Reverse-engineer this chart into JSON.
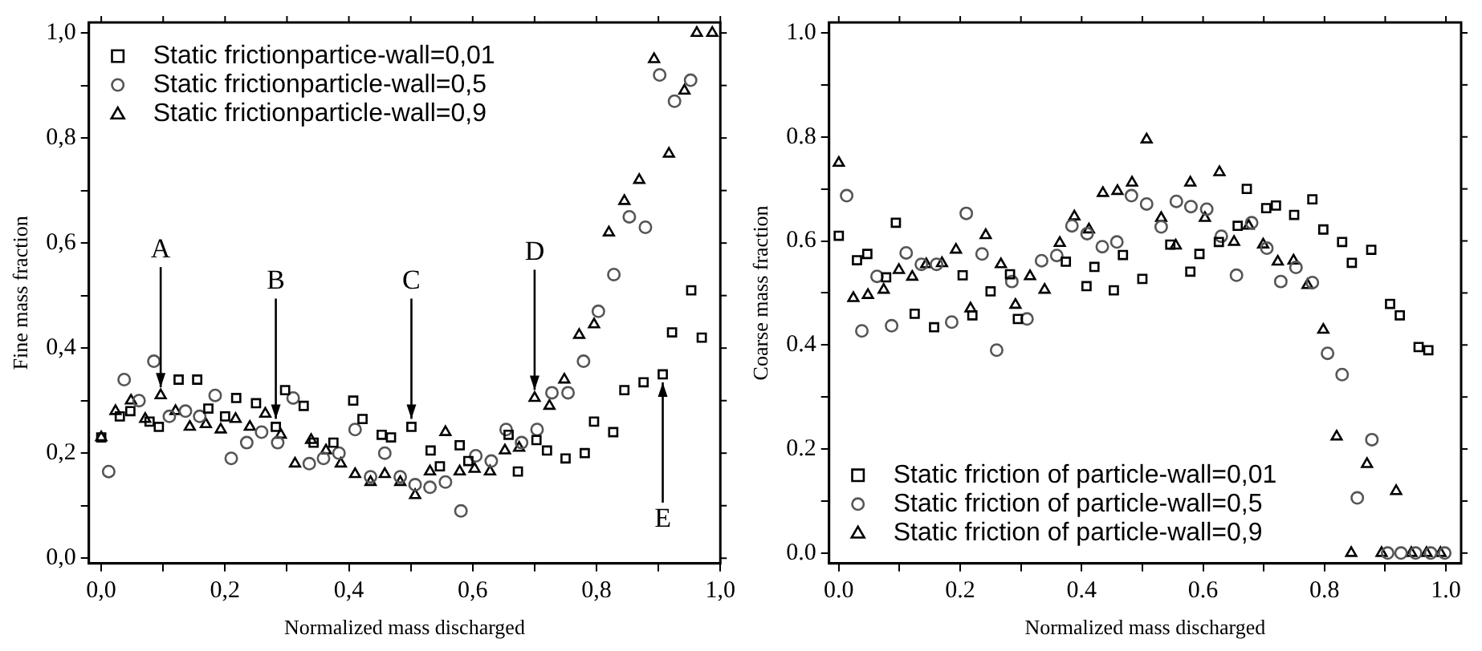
{
  "chart_data": [
    {
      "type": "scatter",
      "xlabel": "Normalized mass discharged",
      "ylabel": "Fine mass fraction",
      "xlim": [
        -0.02,
        1.0
      ],
      "ylim": [
        -0.01,
        1.02
      ],
      "xticks": [
        {
          "value": 0,
          "label": "0,0"
        },
        {
          "value": 0.1,
          "label": null
        },
        {
          "value": 0.2,
          "label": "0,2"
        },
        {
          "value": 0.3,
          "label": null
        },
        {
          "value": 0.4,
          "label": "0,4"
        },
        {
          "value": 0.5,
          "label": null
        },
        {
          "value": 0.6,
          "label": "0,6"
        },
        {
          "value": 0.7,
          "label": null
        },
        {
          "value": 0.8,
          "label": "0,8"
        },
        {
          "value": 0.9,
          "label": null
        },
        {
          "value": 1.0,
          "label": "1,0"
        }
      ],
      "yticks": [
        {
          "value": 0,
          "label": "0,0"
        },
        {
          "value": 0.1,
          "label": null
        },
        {
          "value": 0.2,
          "label": "0,2"
        },
        {
          "value": 0.3,
          "label": null
        },
        {
          "value": 0.4,
          "label": "0,4"
        },
        {
          "value": 0.5,
          "label": null
        },
        {
          "value": 0.6,
          "label": "0,6"
        },
        {
          "value": 0.7,
          "label": null
        },
        {
          "value": 0.8,
          "label": "0,8"
        },
        {
          "value": 0.9,
          "label": null
        },
        {
          "value": 1.0,
          "label": "1,0"
        }
      ],
      "legend": "top left",
      "grid": false,
      "annotations": [
        {
          "text": "A",
          "x": 0.096,
          "y": 0.31
        },
        {
          "text": "B",
          "x": 0.282,
          "y": 0.25
        },
        {
          "text": "C",
          "x": 0.501,
          "y": 0.25
        },
        {
          "text": "D",
          "x": 0.7,
          "y": 0.305
        },
        {
          "text": "E",
          "x": 0.907,
          "y": 0.35
        }
      ],
      "series": [
        {
          "name": "Static frictionpartice-wall=0,01",
          "color": "#000000",
          "marker": "square",
          "x": [
            0.0,
            0.03,
            0.047,
            0.078,
            0.093,
            0.125,
            0.155,
            0.173,
            0.2,
            0.218,
            0.25,
            0.282,
            0.297,
            0.327,
            0.343,
            0.375,
            0.407,
            0.422,
            0.453,
            0.468,
            0.501,
            0.532,
            0.547,
            0.579,
            0.593,
            0.658,
            0.673,
            0.703,
            0.72,
            0.75,
            0.781,
            0.796,
            0.827,
            0.845,
            0.876,
            0.907,
            0.922,
            0.953,
            0.97
          ],
          "values": [
            0.23,
            0.27,
            0.28,
            0.26,
            0.25,
            0.34,
            0.34,
            0.285,
            0.27,
            0.305,
            0.295,
            0.25,
            0.32,
            0.29,
            0.22,
            0.22,
            0.3,
            0.265,
            0.235,
            0.23,
            0.25,
            0.205,
            0.175,
            0.215,
            0.185,
            0.235,
            0.165,
            0.225,
            0.205,
            0.19,
            0.2,
            0.26,
            0.24,
            0.32,
            0.335,
            0.35,
            0.43,
            0.51,
            0.42
          ]
        },
        {
          "name": "Static frictionparticle-wall=0,5",
          "color": "#555555",
          "marker": "circle",
          "x": [
            0.012,
            0.037,
            0.061,
            0.085,
            0.11,
            0.136,
            0.159,
            0.184,
            0.21,
            0.235,
            0.259,
            0.285,
            0.31,
            0.336,
            0.359,
            0.384,
            0.41,
            0.435,
            0.458,
            0.483,
            0.507,
            0.531,
            0.556,
            0.581,
            0.605,
            0.63,
            0.654,
            0.679,
            0.704,
            0.728,
            0.754,
            0.779,
            0.803,
            0.828,
            0.853,
            0.879,
            0.902,
            0.926,
            0.952
          ],
          "values": [
            0.165,
            0.34,
            0.3,
            0.375,
            0.27,
            0.28,
            0.27,
            0.31,
            0.19,
            0.22,
            0.24,
            0.22,
            0.305,
            0.18,
            0.19,
            0.2,
            0.245,
            0.155,
            0.2,
            0.155,
            0.14,
            0.135,
            0.145,
            0.09,
            0.195,
            0.185,
            0.245,
            0.22,
            0.245,
            0.315,
            0.315,
            0.375,
            0.47,
            0.54,
            0.65,
            0.63,
            0.92,
            0.87,
            0.91
          ]
        },
        {
          "name": "Static frictionparticle-wall=0,9",
          "color": "#000000",
          "marker": "triangle",
          "x": [
            0.0,
            0.023,
            0.048,
            0.071,
            0.096,
            0.12,
            0.143,
            0.169,
            0.193,
            0.217,
            0.24,
            0.265,
            0.29,
            0.313,
            0.339,
            0.363,
            0.387,
            0.41,
            0.435,
            0.458,
            0.483,
            0.507,
            0.531,
            0.556,
            0.579,
            0.603,
            0.628,
            0.652,
            0.675,
            0.7,
            0.724,
            0.748,
            0.772,
            0.796,
            0.82,
            0.845,
            0.869,
            0.893,
            0.917,
            0.942,
            0.962,
            0.987
          ],
          "values": [
            0.23,
            0.28,
            0.3,
            0.265,
            0.31,
            0.28,
            0.25,
            0.255,
            0.245,
            0.265,
            0.25,
            0.275,
            0.235,
            0.18,
            0.225,
            0.205,
            0.18,
            0.16,
            0.145,
            0.16,
            0.145,
            0.12,
            0.165,
            0.24,
            0.165,
            0.17,
            0.165,
            0.205,
            0.21,
            0.305,
            0.29,
            0.34,
            0.425,
            0.445,
            0.62,
            0.68,
            0.72,
            0.95,
            0.77,
            0.89,
            1.0,
            1.0
          ]
        }
      ]
    },
    {
      "type": "scatter",
      "xlabel": "Normalized mass discharged",
      "ylabel": "Coarse mass fraction",
      "xlim": [
        -0.016,
        1.025
      ],
      "ylim": [
        -0.02,
        1.02
      ],
      "xticks": [
        {
          "value": 0,
          "label": "0.0"
        },
        {
          "value": 0.1,
          "label": null
        },
        {
          "value": 0.2,
          "label": "0.2"
        },
        {
          "value": 0.3,
          "label": null
        },
        {
          "value": 0.4,
          "label": "0.4"
        },
        {
          "value": 0.5,
          "label": null
        },
        {
          "value": 0.6,
          "label": "0.6"
        },
        {
          "value": 0.7,
          "label": null
        },
        {
          "value": 0.8,
          "label": "0.8"
        },
        {
          "value": 0.9,
          "label": null
        },
        {
          "value": 1.0,
          "label": "1.0"
        }
      ],
      "yticks": [
        {
          "value": 0,
          "label": "0.0"
        },
        {
          "value": 0.1,
          "label": null
        },
        {
          "value": 0.2,
          "label": "0.2"
        },
        {
          "value": 0.3,
          "label": null
        },
        {
          "value": 0.4,
          "label": "0.4"
        },
        {
          "value": 0.5,
          "label": null
        },
        {
          "value": 0.6,
          "label": "0.6"
        },
        {
          "value": 0.7,
          "label": null
        },
        {
          "value": 0.8,
          "label": "0.8"
        },
        {
          "value": 0.9,
          "label": null
        },
        {
          "value": 1.0,
          "label": "1.0"
        }
      ],
      "legend": "bottom left",
      "grid": false,
      "series": [
        {
          "name": "Static friction of particle-wall=0,01",
          "color": "#000000",
          "marker": "square",
          "x": [
            0.0,
            0.03,
            0.047,
            0.078,
            0.094,
            0.125,
            0.157,
            0.204,
            0.22,
            0.25,
            0.282,
            0.295,
            0.374,
            0.408,
            0.421,
            0.453,
            0.468,
            0.5,
            0.546,
            0.579,
            0.594,
            0.626,
            0.657,
            0.672,
            0.704,
            0.72,
            0.75,
            0.78,
            0.798,
            0.829,
            0.845,
            0.877,
            0.908,
            0.924,
            0.955,
            0.971
          ],
          "values": [
            0.61,
            0.563,
            0.575,
            0.53,
            0.635,
            0.46,
            0.434,
            0.534,
            0.457,
            0.503,
            0.536,
            0.45,
            0.56,
            0.513,
            0.55,
            0.505,
            0.573,
            0.527,
            0.593,
            0.541,
            0.575,
            0.598,
            0.629,
            0.7,
            0.663,
            0.668,
            0.65,
            0.68,
            0.622,
            0.598,
            0.558,
            0.583,
            0.479,
            0.457,
            0.396,
            0.39
          ]
        },
        {
          "name": "Static friction of particle-wall=0,5",
          "color": "#555555",
          "marker": "circle",
          "x": [
            0.013,
            0.038,
            0.063,
            0.087,
            0.111,
            0.136,
            0.161,
            0.186,
            0.21,
            0.236,
            0.26,
            0.285,
            0.31,
            0.334,
            0.359,
            0.384,
            0.409,
            0.434,
            0.458,
            0.482,
            0.507,
            0.531,
            0.556,
            0.58,
            0.606,
            0.63,
            0.655,
            0.68,
            0.705,
            0.728,
            0.753,
            0.78,
            0.805,
            0.829,
            0.854,
            0.878,
            0.904,
            0.926,
            0.95,
            0.975,
            0.998
          ],
          "values": [
            0.687,
            0.427,
            0.532,
            0.437,
            0.577,
            0.555,
            0.555,
            0.444,
            0.653,
            0.575,
            0.39,
            0.522,
            0.45,
            0.562,
            0.572,
            0.629,
            0.614,
            0.589,
            0.598,
            0.687,
            0.671,
            0.627,
            0.676,
            0.666,
            0.661,
            0.609,
            0.534,
            0.635,
            0.586,
            0.522,
            0.549,
            0.52,
            0.384,
            0.343,
            0.106,
            0.218,
            0.0,
            0.0,
            0.0,
            0.0,
            0.0
          ]
        },
        {
          "name": "Static friction of particle-wall=0,9",
          "color": "#000000",
          "marker": "triangle",
          "x": [
            0.0,
            0.024,
            0.048,
            0.074,
            0.099,
            0.121,
            0.144,
            0.17,
            0.193,
            0.217,
            0.242,
            0.267,
            0.291,
            0.315,
            0.339,
            0.364,
            0.388,
            0.412,
            0.435,
            0.459,
            0.483,
            0.507,
            0.531,
            0.555,
            0.579,
            0.603,
            0.627,
            0.651,
            0.675,
            0.699,
            0.723,
            0.749,
            0.772,
            0.798,
            0.82,
            0.844,
            0.87,
            0.894,
            0.918,
            0.943,
            0.968,
            0.991
          ],
          "values": [
            0.75,
            0.49,
            0.496,
            0.506,
            0.544,
            0.531,
            0.555,
            0.557,
            0.583,
            0.47,
            0.611,
            0.555,
            0.477,
            0.532,
            0.506,
            0.596,
            0.647,
            0.622,
            0.692,
            0.696,
            0.712,
            0.795,
            0.644,
            0.591,
            0.712,
            0.644,
            0.732,
            0.598,
            0.629,
            0.593,
            0.56,
            0.562,
            0.515,
            0.429,
            0.224,
            0.0,
            0.171,
            0.0,
            0.119,
            0.0,
            0.0,
            0.0
          ]
        }
      ]
    }
  ]
}
